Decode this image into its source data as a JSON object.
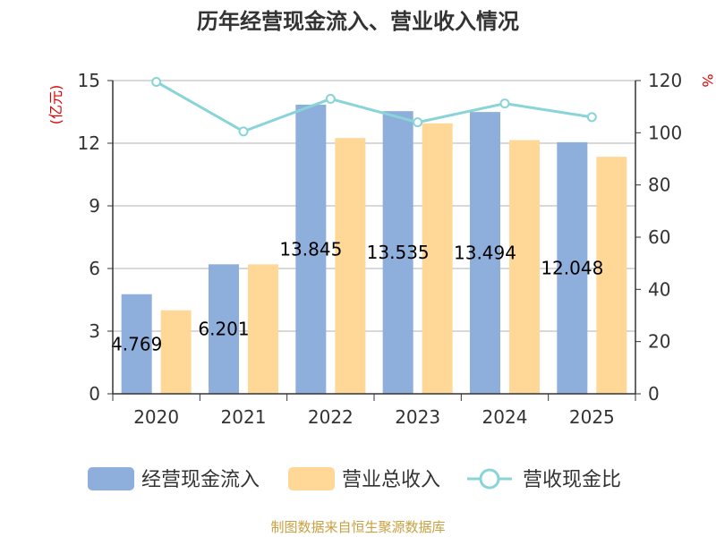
{
  "chart_data": {
    "type": "bar",
    "title": "历年经营现金流入、营业收入情况",
    "categories": [
      "2020",
      "2021",
      "2022",
      "2023",
      "2024",
      "2025"
    ],
    "series": [
      {
        "name": "经营现金流入",
        "type": "bar",
        "axis": "left",
        "color": "#8eaedc",
        "values": [
          4.769,
          6.201,
          13.845,
          13.535,
          13.494,
          12.048
        ],
        "labels": [
          "4.769",
          "6.201",
          "13.845",
          "13.535",
          "13.494",
          "12.048"
        ]
      },
      {
        "name": "营业总收入",
        "type": "bar",
        "axis": "left",
        "color": "#ffd898",
        "values": [
          4.0,
          6.2,
          12.25,
          12.95,
          12.15,
          11.35
        ]
      },
      {
        "name": "营收现金比",
        "type": "line",
        "axis": "right",
        "color": "#88d4d8",
        "values": [
          119.5,
          100.5,
          113.0,
          104.0,
          111.2,
          106.0
        ]
      }
    ],
    "y_left": {
      "label": "(亿元)",
      "min": 0,
      "max": 15,
      "ticks": [
        "0",
        "3",
        "6",
        "9",
        "12",
        "15"
      ]
    },
    "y_right": {
      "label": "%",
      "min": 0,
      "max": 120,
      "ticks": [
        "0",
        "20",
        "40",
        "60",
        "80",
        "100",
        "120"
      ]
    },
    "grid": true,
    "legend_position": "bottom"
  },
  "source_text": "制图数据来自恒生聚源数据库"
}
